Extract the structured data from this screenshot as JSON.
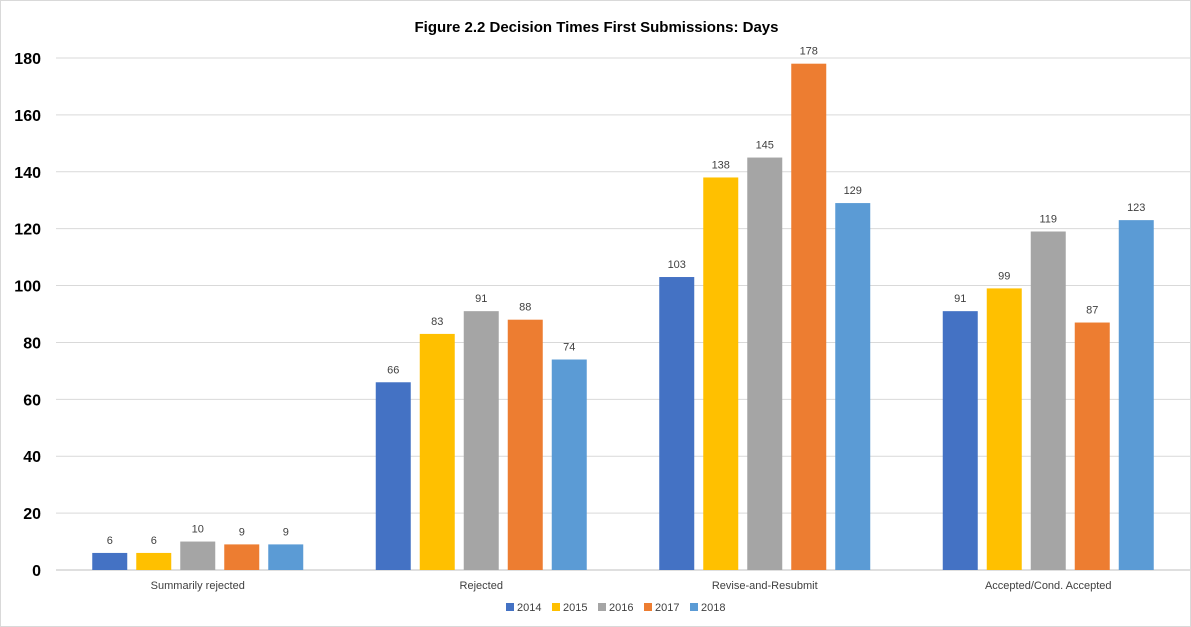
{
  "chart_data": {
    "type": "bar",
    "title": "Figure 2.2 Decision Times First Submissions: Days",
    "xlabel": "",
    "ylabel": "",
    "categories": [
      "Summarily rejected",
      "Rejected",
      "Revise-and-Resubmit",
      "Accepted/Cond. Accepted"
    ],
    "series": [
      {
        "name": "2014",
        "color": "#4472c4",
        "values": [
          6,
          66,
          103,
          91
        ]
      },
      {
        "name": "2015",
        "color": "#ffc000",
        "values": [
          6,
          83,
          138,
          99
        ]
      },
      {
        "name": "2016",
        "color": "#a5a5a5",
        "values": [
          10,
          91,
          145,
          119
        ]
      },
      {
        "name": "2017",
        "color": "#ed7d31",
        "values": [
          9,
          88,
          178,
          87
        ]
      },
      {
        "name": "2018",
        "color": "#5b9bd5",
        "values": [
          9,
          74,
          129,
          123
        ]
      }
    ],
    "yticks": [
      "0",
      "20",
      "40",
      "60",
      "80",
      "100",
      "120",
      "140",
      "160",
      "180"
    ],
    "ylim": [
      0,
      180
    ],
    "grid": true,
    "legend_position": "bottom",
    "data_labels": true
  }
}
